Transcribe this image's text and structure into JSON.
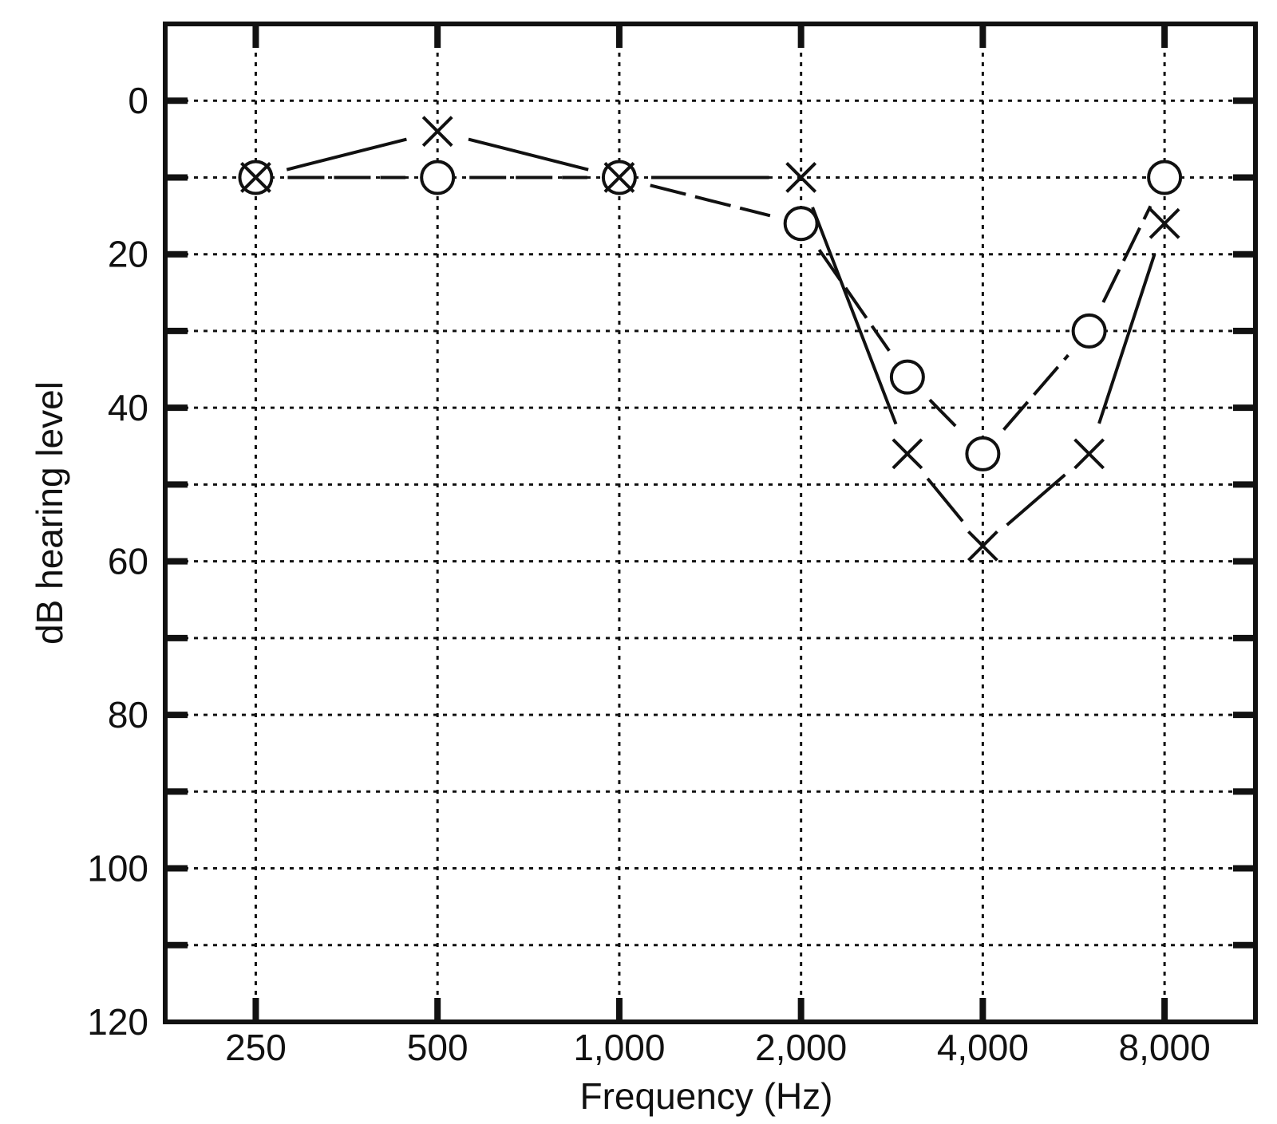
{
  "chart_data": {
    "type": "line",
    "title": "",
    "xlabel": "Frequency (Hz)",
    "ylabel": "dB hearing level",
    "x_scale": "log2",
    "y_inverted": true,
    "xlim": [
      177,
      11314
    ],
    "ylim": [
      -10,
      120
    ],
    "x_tick_values": [
      250,
      500,
      1000,
      2000,
      4000,
      8000
    ],
    "x_tick_labels": [
      "250",
      "500",
      "1,000",
      "2,000",
      "4,000",
      "8,000"
    ],
    "y_tick_values": [
      0,
      20,
      40,
      60,
      80,
      100,
      120
    ],
    "y_tick_labels": [
      "0",
      "20",
      "40",
      "60",
      "80",
      "100",
      "120"
    ],
    "y_gridlines": [
      0,
      10,
      20,
      30,
      40,
      50,
      60,
      70,
      80,
      90,
      100,
      110
    ],
    "x_gridlines": [
      250,
      500,
      1000,
      2000,
      4000,
      8000
    ],
    "grid": true,
    "legend": "none",
    "series": [
      {
        "marker": "circle",
        "x": [
          250,
          500,
          1000,
          2000,
          3000,
          4000,
          6000,
          8000
        ],
        "y": [
          10,
          10,
          10,
          16,
          36,
          46,
          30,
          10
        ]
      },
      {
        "marker": "cross",
        "x": [
          250,
          500,
          1000,
          2000,
          3000,
          4000,
          6000,
          8000
        ],
        "y": [
          10,
          4,
          10,
          10,
          46,
          58,
          46,
          16
        ]
      }
    ],
    "colors": {
      "ink": "#111111",
      "background": "#ffffff"
    }
  }
}
